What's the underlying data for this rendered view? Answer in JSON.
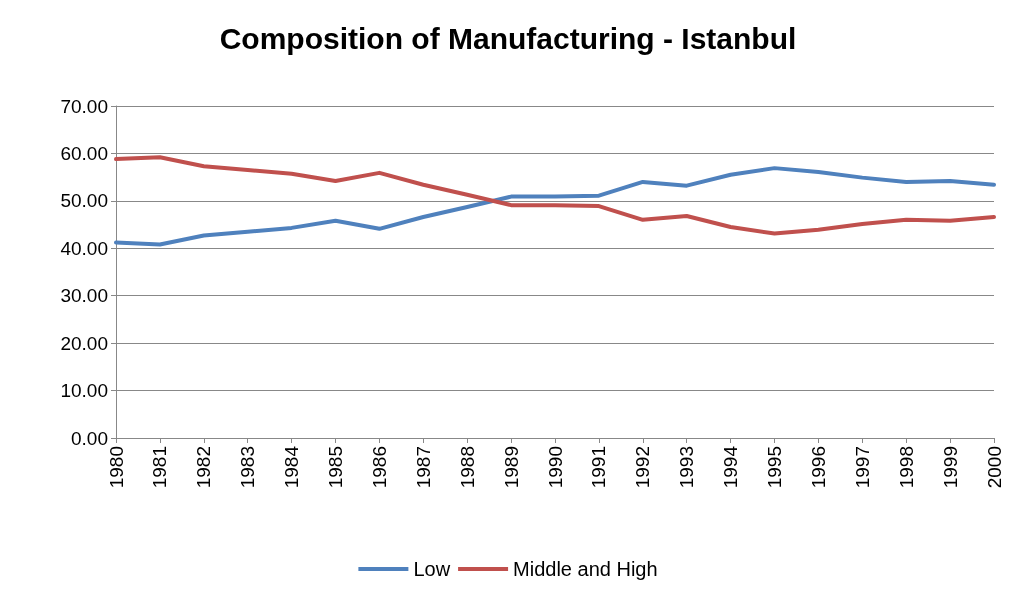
{
  "chart_data": {
    "type": "line",
    "title": "Composition of Manufacturing - Istanbul",
    "categories": [
      "1980",
      "1981",
      "1982",
      "1983",
      "1984",
      "1985",
      "1986",
      "1987",
      "1988",
      "1989",
      "1990",
      "1991",
      "1992",
      "1993",
      "1994",
      "1995",
      "1996",
      "1997",
      "1998",
      "1999",
      "2000"
    ],
    "series": [
      {
        "name": "Low",
        "color": "#4f81bd",
        "values": [
          41.2,
          40.8,
          42.7,
          43.5,
          44.3,
          45.8,
          44.1,
          46.6,
          48.7,
          50.9,
          50.9,
          51.1,
          54.0,
          53.2,
          55.5,
          56.9,
          56.1,
          54.9,
          54.0,
          54.2,
          53.4
        ]
      },
      {
        "name": "Middle and High",
        "color": "#c0504d",
        "values": [
          58.8,
          59.2,
          57.3,
          56.5,
          55.7,
          54.2,
          55.9,
          53.4,
          51.3,
          49.1,
          49.1,
          48.9,
          46.0,
          46.8,
          44.5,
          43.1,
          43.9,
          45.1,
          46.0,
          45.8,
          46.6
        ]
      }
    ],
    "ylim": [
      0,
      70
    ],
    "yticks": [
      {
        "value": 0,
        "label": "0.00"
      },
      {
        "value": 10,
        "label": "10.00"
      },
      {
        "value": 20,
        "label": "20.00"
      },
      {
        "value": 30,
        "label": "30.00"
      },
      {
        "value": 40,
        "label": "40.00"
      },
      {
        "value": 50,
        "label": "50.00"
      },
      {
        "value": 60,
        "label": "60.00"
      },
      {
        "value": 70,
        "label": "70.00"
      }
    ],
    "grid": "y",
    "legend": "bottom",
    "marker": "none",
    "line_style": "solid"
  }
}
